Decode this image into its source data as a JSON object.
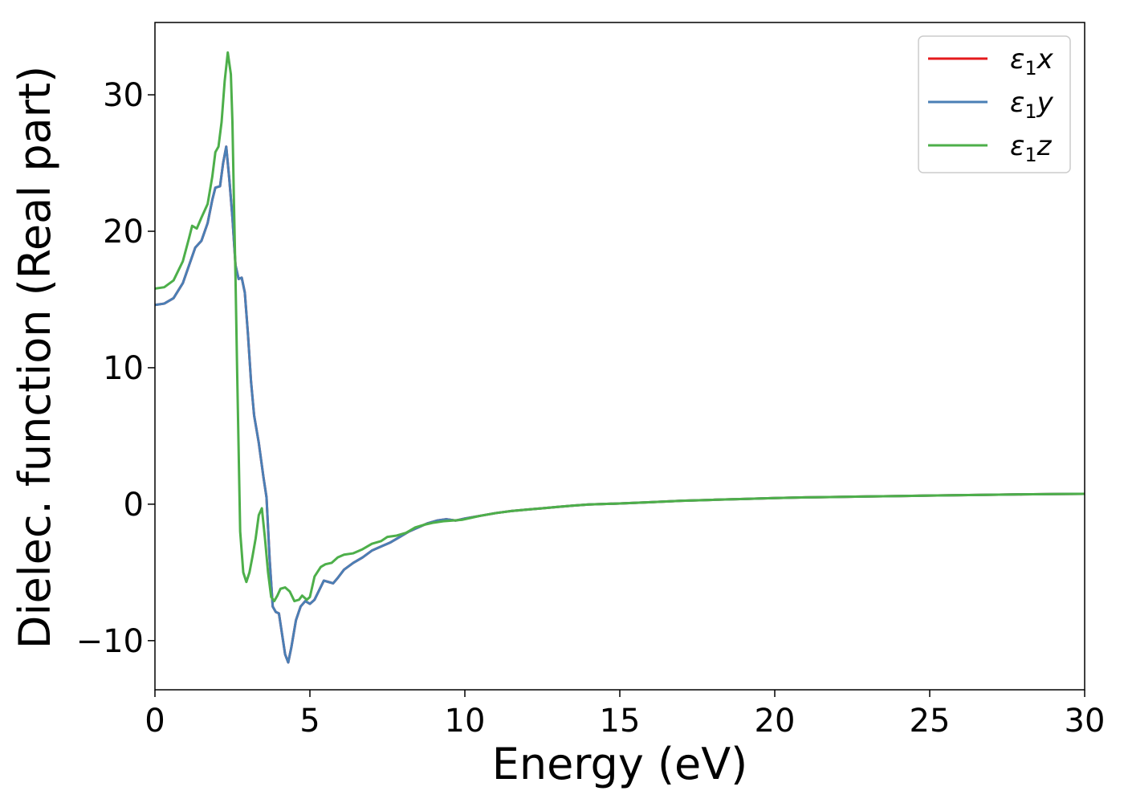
{
  "chart_data": {
    "type": "line",
    "title": "",
    "xlabel": "Energy (eV)",
    "ylabel": "Dielec. function (Real part)",
    "xlim": [
      0,
      30
    ],
    "ylim": [
      -13.6,
      35.3
    ],
    "xticks": [
      0,
      5,
      10,
      15,
      20,
      25,
      30
    ],
    "yticks": [
      -10,
      0,
      10,
      20,
      30
    ],
    "xtick_labels": [
      "0",
      "5",
      "10",
      "15",
      "20",
      "25",
      "30"
    ],
    "ytick_labels": [
      "−10",
      "0",
      "10",
      "20",
      "30"
    ],
    "grid": false,
    "legend_position": "top-right",
    "series": [
      {
        "name": "ε₁x",
        "legend_main": "ε",
        "legend_sub": "1",
        "legend_var": "x",
        "color": "#e41a1c",
        "points": [
          [
            0,
            14.6
          ],
          [
            0.3,
            14.7
          ],
          [
            0.6,
            15.1
          ],
          [
            0.9,
            16.2
          ],
          [
            1.1,
            17.5
          ],
          [
            1.3,
            18.8
          ],
          [
            1.5,
            19.3
          ],
          [
            1.7,
            20.6
          ],
          [
            1.85,
            22.3
          ],
          [
            1.95,
            23.2
          ],
          [
            2.1,
            23.3
          ],
          [
            2.2,
            25.0
          ],
          [
            2.3,
            26.2
          ],
          [
            2.4,
            23.8
          ],
          [
            2.5,
            21.0
          ],
          [
            2.6,
            17.5
          ],
          [
            2.7,
            16.5
          ],
          [
            2.8,
            16.6
          ],
          [
            2.9,
            15.5
          ],
          [
            3.0,
            12.5
          ],
          [
            3.1,
            9.0
          ],
          [
            3.2,
            6.5
          ],
          [
            3.35,
            4.5
          ],
          [
            3.5,
            2.0
          ],
          [
            3.6,
            0.5
          ],
          [
            3.7,
            -4.0
          ],
          [
            3.8,
            -7.5
          ],
          [
            3.9,
            -7.9
          ],
          [
            4.0,
            -8.0
          ],
          [
            4.1,
            -9.5
          ],
          [
            4.2,
            -11.0
          ],
          [
            4.3,
            -11.6
          ],
          [
            4.4,
            -10.5
          ],
          [
            4.55,
            -8.5
          ],
          [
            4.7,
            -7.5
          ],
          [
            4.85,
            -7.1
          ],
          [
            5.0,
            -7.3
          ],
          [
            5.15,
            -7.0
          ],
          [
            5.3,
            -6.3
          ],
          [
            5.45,
            -5.6
          ],
          [
            5.6,
            -5.7
          ],
          [
            5.75,
            -5.8
          ],
          [
            5.9,
            -5.4
          ],
          [
            6.1,
            -4.8
          ],
          [
            6.4,
            -4.3
          ],
          [
            6.7,
            -3.9
          ],
          [
            7.0,
            -3.4
          ],
          [
            7.3,
            -3.1
          ],
          [
            7.6,
            -2.8
          ],
          [
            7.9,
            -2.4
          ],
          [
            8.2,
            -2.0
          ],
          [
            8.5,
            -1.7
          ],
          [
            8.8,
            -1.4
          ],
          [
            9.1,
            -1.2
          ],
          [
            9.4,
            -1.1
          ],
          [
            9.7,
            -1.2
          ],
          [
            10.0,
            -1.05
          ],
          [
            10.5,
            -0.85
          ],
          [
            11.0,
            -0.65
          ],
          [
            11.5,
            -0.5
          ],
          [
            12.0,
            -0.4
          ],
          [
            12.5,
            -0.3
          ],
          [
            13.0,
            -0.2
          ],
          [
            13.5,
            -0.1
          ],
          [
            14.0,
            -0.02
          ],
          [
            15.0,
            0.05
          ],
          [
            16.0,
            0.15
          ],
          [
            17.0,
            0.25
          ],
          [
            18.0,
            0.32
          ],
          [
            19.0,
            0.38
          ],
          [
            20.0,
            0.45
          ],
          [
            21.0,
            0.5
          ],
          [
            22.0,
            0.53
          ],
          [
            23.0,
            0.57
          ],
          [
            24.0,
            0.6
          ],
          [
            25.0,
            0.63
          ],
          [
            26.0,
            0.66
          ],
          [
            27.0,
            0.69
          ],
          [
            28.0,
            0.72
          ],
          [
            29.0,
            0.74
          ],
          [
            30.0,
            0.76
          ]
        ]
      },
      {
        "name": "ε₁y",
        "legend_main": "ε",
        "legend_sub": "1",
        "legend_var": "y",
        "color": "#4a7fb5",
        "points": [
          [
            0,
            14.6
          ],
          [
            0.3,
            14.7
          ],
          [
            0.6,
            15.1
          ],
          [
            0.9,
            16.2
          ],
          [
            1.1,
            17.5
          ],
          [
            1.3,
            18.8
          ],
          [
            1.5,
            19.3
          ],
          [
            1.7,
            20.6
          ],
          [
            1.85,
            22.3
          ],
          [
            1.95,
            23.2
          ],
          [
            2.1,
            23.3
          ],
          [
            2.2,
            25.0
          ],
          [
            2.3,
            26.2
          ],
          [
            2.4,
            23.8
          ],
          [
            2.5,
            21.0
          ],
          [
            2.6,
            17.5
          ],
          [
            2.7,
            16.5
          ],
          [
            2.8,
            16.6
          ],
          [
            2.9,
            15.5
          ],
          [
            3.0,
            12.5
          ],
          [
            3.1,
            9.0
          ],
          [
            3.2,
            6.5
          ],
          [
            3.35,
            4.5
          ],
          [
            3.5,
            2.0
          ],
          [
            3.6,
            0.5
          ],
          [
            3.7,
            -4.0
          ],
          [
            3.8,
            -7.5
          ],
          [
            3.9,
            -7.9
          ],
          [
            4.0,
            -8.0
          ],
          [
            4.1,
            -9.5
          ],
          [
            4.2,
            -11.0
          ],
          [
            4.3,
            -11.6
          ],
          [
            4.4,
            -10.5
          ],
          [
            4.55,
            -8.5
          ],
          [
            4.7,
            -7.5
          ],
          [
            4.85,
            -7.1
          ],
          [
            5.0,
            -7.3
          ],
          [
            5.15,
            -7.0
          ],
          [
            5.3,
            -6.3
          ],
          [
            5.45,
            -5.6
          ],
          [
            5.6,
            -5.7
          ],
          [
            5.75,
            -5.8
          ],
          [
            5.9,
            -5.4
          ],
          [
            6.1,
            -4.8
          ],
          [
            6.4,
            -4.3
          ],
          [
            6.7,
            -3.9
          ],
          [
            7.0,
            -3.4
          ],
          [
            7.3,
            -3.1
          ],
          [
            7.6,
            -2.8
          ],
          [
            7.9,
            -2.4
          ],
          [
            8.2,
            -2.0
          ],
          [
            8.5,
            -1.7
          ],
          [
            8.8,
            -1.4
          ],
          [
            9.1,
            -1.2
          ],
          [
            9.4,
            -1.1
          ],
          [
            9.7,
            -1.2
          ],
          [
            10.0,
            -1.05
          ],
          [
            10.5,
            -0.85
          ],
          [
            11.0,
            -0.65
          ],
          [
            11.5,
            -0.5
          ],
          [
            12.0,
            -0.4
          ],
          [
            12.5,
            -0.3
          ],
          [
            13.0,
            -0.2
          ],
          [
            13.5,
            -0.1
          ],
          [
            14.0,
            -0.02
          ],
          [
            15.0,
            0.05
          ],
          [
            16.0,
            0.15
          ],
          [
            17.0,
            0.25
          ],
          [
            18.0,
            0.32
          ],
          [
            19.0,
            0.38
          ],
          [
            20.0,
            0.45
          ],
          [
            21.0,
            0.5
          ],
          [
            22.0,
            0.53
          ],
          [
            23.0,
            0.57
          ],
          [
            24.0,
            0.6
          ],
          [
            25.0,
            0.63
          ],
          [
            26.0,
            0.66
          ],
          [
            27.0,
            0.69
          ],
          [
            28.0,
            0.72
          ],
          [
            29.0,
            0.74
          ],
          [
            30.0,
            0.76
          ]
        ]
      },
      {
        "name": "ε₁z",
        "legend_main": "ε",
        "legend_sub": "1",
        "legend_var": "z",
        "color": "#4daf4a",
        "points": [
          [
            0,
            15.8
          ],
          [
            0.3,
            15.9
          ],
          [
            0.6,
            16.4
          ],
          [
            0.9,
            17.8
          ],
          [
            1.1,
            19.5
          ],
          [
            1.2,
            20.4
          ],
          [
            1.35,
            20.2
          ],
          [
            1.5,
            21.0
          ],
          [
            1.7,
            22.0
          ],
          [
            1.85,
            24.0
          ],
          [
            1.95,
            25.8
          ],
          [
            2.05,
            26.2
          ],
          [
            2.15,
            28.0
          ],
          [
            2.25,
            31.0
          ],
          [
            2.35,
            33.1
          ],
          [
            2.45,
            31.5
          ],
          [
            2.5,
            28.0
          ],
          [
            2.55,
            22.0
          ],
          [
            2.6,
            16.5
          ],
          [
            2.65,
            10.0
          ],
          [
            2.75,
            -2.0
          ],
          [
            2.85,
            -5.0
          ],
          [
            2.95,
            -5.7
          ],
          [
            3.05,
            -5.0
          ],
          [
            3.15,
            -3.8
          ],
          [
            3.25,
            -2.5
          ],
          [
            3.35,
            -0.8
          ],
          [
            3.45,
            -0.3
          ],
          [
            3.55,
            -2.5
          ],
          [
            3.65,
            -5.0
          ],
          [
            3.75,
            -6.8
          ],
          [
            3.85,
            -7.1
          ],
          [
            3.95,
            -6.7
          ],
          [
            4.05,
            -6.2
          ],
          [
            4.2,
            -6.1
          ],
          [
            4.35,
            -6.4
          ],
          [
            4.5,
            -7.1
          ],
          [
            4.65,
            -7.0
          ],
          [
            4.75,
            -6.7
          ],
          [
            4.9,
            -7.0
          ],
          [
            5.0,
            -6.8
          ],
          [
            5.15,
            -5.3
          ],
          [
            5.35,
            -4.6
          ],
          [
            5.5,
            -4.4
          ],
          [
            5.7,
            -4.3
          ],
          [
            5.9,
            -3.9
          ],
          [
            6.1,
            -3.7
          ],
          [
            6.4,
            -3.6
          ],
          [
            6.7,
            -3.3
          ],
          [
            7.0,
            -2.9
          ],
          [
            7.3,
            -2.7
          ],
          [
            7.5,
            -2.4
          ],
          [
            7.8,
            -2.3
          ],
          [
            8.1,
            -2.1
          ],
          [
            8.4,
            -1.7
          ],
          [
            8.7,
            -1.5
          ],
          [
            9.0,
            -1.35
          ],
          [
            9.3,
            -1.25
          ],
          [
            9.6,
            -1.2
          ],
          [
            9.9,
            -1.15
          ],
          [
            10.2,
            -1.0
          ],
          [
            10.5,
            -0.85
          ],
          [
            11.0,
            -0.65
          ],
          [
            11.5,
            -0.5
          ],
          [
            12.0,
            -0.4
          ],
          [
            12.5,
            -0.3
          ],
          [
            13.0,
            -0.2
          ],
          [
            13.5,
            -0.1
          ],
          [
            14.0,
            -0.02
          ],
          [
            15.0,
            0.05
          ],
          [
            16.0,
            0.15
          ],
          [
            17.0,
            0.25
          ],
          [
            18.0,
            0.32
          ],
          [
            19.0,
            0.38
          ],
          [
            20.0,
            0.45
          ],
          [
            21.0,
            0.5
          ],
          [
            22.0,
            0.53
          ],
          [
            23.0,
            0.57
          ],
          [
            24.0,
            0.6
          ],
          [
            25.0,
            0.63
          ],
          [
            26.0,
            0.66
          ],
          [
            27.0,
            0.69
          ],
          [
            28.0,
            0.72
          ],
          [
            29.0,
            0.74
          ],
          [
            30.0,
            0.76
          ]
        ]
      }
    ]
  }
}
